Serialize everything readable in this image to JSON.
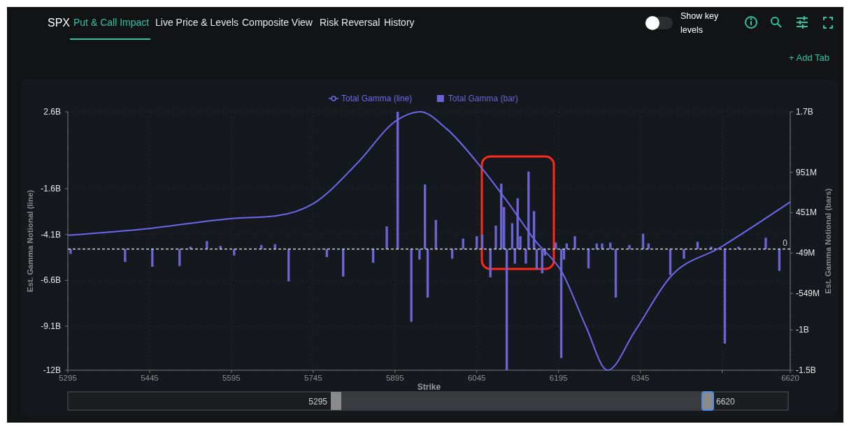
{
  "chart_data": {
    "type": "line",
    "title": "SPX",
    "xlabel": "Strike",
    "ylabel": "Est. Gamma Notional (line)",
    "y2label": "Est. Gamma Notional (bars)",
    "annotations": [
      "Put & Call Impact",
      "Live Price & Levels",
      "Composite View",
      "Risk Reversal",
      "History",
      "Show key levels",
      "+ Add Tab",
      "5295",
      "6620"
    ],
    "xlim": [
      5295,
      6620
    ],
    "xticks": [
      5295,
      5445,
      5595,
      5745,
      5895,
      6045,
      6195,
      6345,
      {
        "value": 6495,
        "label": null
      },
      6620
    ],
    "ylim": [
      -11.5,
      2.6
    ],
    "yticks": [
      {
        "value": 2.6,
        "label": "2.6B"
      },
      {
        "value": -1.6,
        "label": "-1.6B"
      },
      {
        "value": -4.1,
        "label": "-4.1B"
      },
      {
        "value": -6.6,
        "label": "-6.6B"
      },
      {
        "value": -9.1,
        "label": "-9.1B"
      },
      {
        "value": -11.5,
        "label": "-12B"
      }
    ],
    "y2lim": [
      -1500000000,
      1700000000
    ],
    "y2ticks": [
      {
        "value": 1700000000,
        "label": "1.7B"
      },
      {
        "value": 951000000,
        "label": "951M"
      },
      {
        "value": 451000000,
        "label": "451M"
      },
      {
        "value": -49000000,
        "label": "-49M"
      },
      {
        "value": -549000000,
        "label": "-549M"
      },
      {
        "value": -1000000000,
        "label": "-1B"
      },
      {
        "value": -1500000000,
        "label": "-1.5B"
      }
    ],
    "grid": true,
    "legend": "top",
    "ref_lines": [
      {
        "axis": "y2",
        "value": 0,
        "label": "0",
        "color": "#d0d0d0",
        "line_style": "dashed"
      }
    ],
    "series": [
      {
        "name": "Total Gamma (line)",
        "color": "#6f66ee",
        "x": [
          5295,
          5446,
          5594,
          5677,
          5747,
          5826,
          5899,
          5941,
          5989,
          6053,
          6103,
          6152,
          6202,
          6245,
          6285,
          6335,
          6399,
          6493,
          6620
        ],
        "values": [
          -4.14,
          -3.76,
          -3.23,
          -3.08,
          -2.38,
          -0.2,
          2.15,
          2.6,
          1.69,
          -0.43,
          -2.38,
          -4.43,
          -6.19,
          -9.1,
          -11.5,
          -9.37,
          -6.45,
          -4.78,
          -2.32
        ]
      },
      {
        "name": "Total Gamma (bar)",
        "type": "bar",
        "axis": "y2",
        "color": "#6a64d4",
        "x": [
          5300,
          5400,
          5450,
          5500,
          5520,
          5550,
          5575,
          5600,
          5650,
          5675,
          5700,
          5770,
          5800,
          5855,
          5880,
          5900,
          5925,
          5940,
          5950,
          5955,
          5970,
          6000,
          6020,
          6045,
          6055,
          6070,
          6080,
          6090,
          6095,
          6100,
          6110,
          6115,
          6120,
          6125,
          6135,
          6140,
          6150,
          6155,
          6165,
          6170,
          6190,
          6200,
          6205,
          6210,
          6225,
          6250,
          6265,
          6275,
          6290,
          6300,
          6325,
          6350,
          6360,
          6400,
          6425,
          6450,
          6475,
          6500,
          6525,
          6575,
          6600
        ],
        "values": [
          -60000000,
          -160000000,
          -220000000,
          -210000000,
          30000000,
          100000000,
          40000000,
          -80000000,
          50000000,
          60000000,
          -400000000,
          -100000000,
          -340000000,
          -170000000,
          280000000,
          1700000000,
          -900000000,
          -130000000,
          800000000,
          -600000000,
          360000000,
          -120000000,
          130000000,
          160000000,
          180000000,
          -350000000,
          290000000,
          810000000,
          520000000,
          -1500000000,
          320000000,
          -180000000,
          630000000,
          160000000,
          -180000000,
          960000000,
          470000000,
          -250000000,
          -300000000,
          -80000000,
          80000000,
          -1350000000,
          -130000000,
          70000000,
          160000000,
          -240000000,
          70000000,
          70000000,
          80000000,
          -600000000,
          50000000,
          190000000,
          70000000,
          -320000000,
          -120000000,
          90000000,
          30000000,
          -1170000000,
          30000000,
          140000000,
          -270000000
        ]
      }
    ]
  }
}
